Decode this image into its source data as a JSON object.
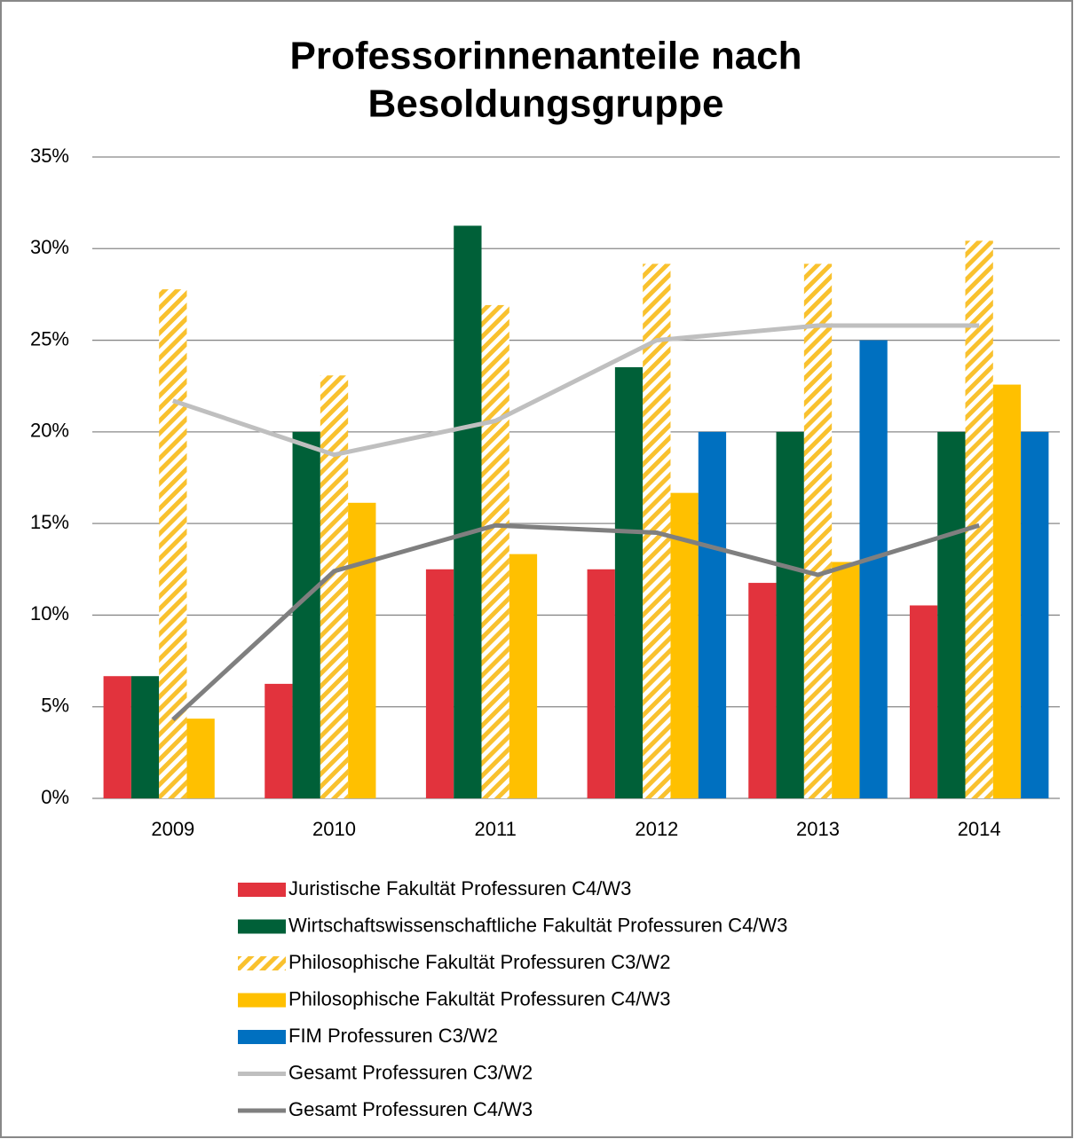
{
  "chart_data": {
    "type": "bar",
    "title": [
      "Professorinnenanteile nach",
      "Besoldungsgruppe"
    ],
    "categories": [
      "2009",
      "2010",
      "2011",
      "2012",
      "2013",
      "2014"
    ],
    "series": [
      {
        "name": "Juristische Fakultät Professuren C4/W3",
        "color": "#e2333d",
        "values": [
          6.67,
          6.25,
          12.5,
          12.5,
          11.76,
          10.53
        ]
      },
      {
        "name": "Wirtschaftswissenschaftliche Fakultät Professuren C4/W3",
        "color": "#006038",
        "values": [
          6.67,
          20,
          31.25,
          23.53,
          20,
          20
        ]
      },
      {
        "name": "Philosophische Fakultät Professuren C3/W2",
        "color": "#f9c12e",
        "hatch": true,
        "values": [
          27.78,
          23.08,
          26.92,
          29.17,
          29.17,
          30.43
        ]
      },
      {
        "name": "Philosophische Fakultät Professuren C4/W3",
        "color": "#ffc000",
        "values": [
          4.35,
          16.13,
          13.33,
          16.67,
          12.9,
          22.58
        ]
      },
      {
        "name": "FIM Professuren C3/W2",
        "color": "#0070c0",
        "values": [
          null,
          null,
          null,
          20,
          25,
          20
        ]
      },
      {
        "name": "Gesamt Professuren C3/W2",
        "color": "#bfbfbf",
        "type": "line",
        "values": [
          21.7,
          18.75,
          20.6,
          25.0,
          25.8,
          25.8
        ]
      },
      {
        "name": "Gesamt Professuren C4/W3",
        "color": "#7f7f7f",
        "type": "line",
        "values": [
          4.3,
          12.4,
          14.9,
          14.5,
          12.2,
          14.9
        ]
      }
    ],
    "ylim": [
      0,
      35
    ],
    "yticks": [
      {
        "value": 0,
        "label": "0%"
      },
      {
        "value": 5,
        "label": "5%"
      },
      {
        "value": 10,
        "label": "10%"
      },
      {
        "value": 15,
        "label": "15%"
      },
      {
        "value": 20,
        "label": "20%"
      },
      {
        "value": 25,
        "label": "25%"
      },
      {
        "value": 30,
        "label": "30%"
      },
      {
        "value": 35,
        "label": "35%"
      }
    ],
    "grid": true,
    "legend": "bottom"
  }
}
